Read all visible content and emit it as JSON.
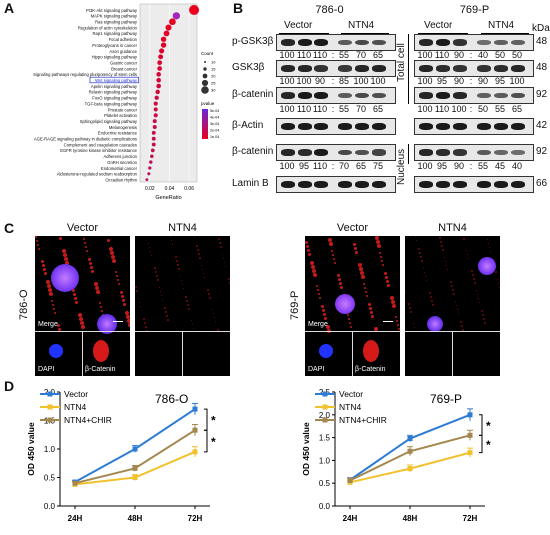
{
  "panels": {
    "a": "A",
    "b": "B",
    "c": "C",
    "d": "D"
  },
  "panel_a": {
    "pathways": [
      "PI3K-Akt signaling pathway",
      "MAPK signaling pathway",
      "Ras signaling pathway",
      "Regulation of actin cytoskeleton",
      "Rap1 signaling pathway",
      "Focal adhesion",
      "Proteoglycans in cancer",
      "Axon guidance",
      "Hippo signaling pathway",
      "Gastric cancer",
      "Breast cancer",
      "Signaling pathways regulating pluripotency of stem cells",
      "Wnt signaling pathway",
      "Apelin signaling pathway",
      "Relaxin signaling pathway",
      "FoxO signaling pathway",
      "TGF-beta signaling pathway",
      "Prostate cancer",
      "Platelet activation",
      "Sphingolipid signaling pathway",
      "Melanogenesis",
      "Endocrine resistance",
      "AGE-RAGE signaling pathway in diabetic complications",
      "Complement and coagulation cascades",
      "EGFR tyrosine kinase inhibitor resistance",
      "Adherens junction",
      "GnRH secretion",
      "Endometrial cancer",
      "Aldosterone-regulated sodium reabsorption",
      "Circadian rhythm"
    ],
    "gene_ratio": [
      0.065,
      0.047,
      0.043,
      0.039,
      0.037,
      0.034,
      0.034,
      0.032,
      0.031,
      0.03,
      0.03,
      0.029,
      0.029,
      0.029,
      0.028,
      0.027,
      0.026,
      0.026,
      0.026,
      0.025,
      0.025,
      0.024,
      0.024,
      0.024,
      0.023,
      0.022,
      0.021,
      0.02,
      0.019,
      0.017
    ],
    "highlight_index": 12,
    "xlabel": "GeneRatio",
    "xticks": [
      "0.02",
      "0.04",
      "0.06"
    ],
    "xlim": [
      0.01,
      0.068
    ],
    "legend_count_title": "Count",
    "legend_count": [
      "10",
      "15",
      "20",
      "25",
      "30"
    ],
    "legend_p_title": "pvalue",
    "legend_p_ticks": [
      "5e-04",
      "4e-04",
      "3e-04",
      "2e-04",
      "1e-04"
    ],
    "colors": {
      "high": "#e8001c",
      "low": "#6a28d8",
      "highlight": "#2233cc"
    }
  },
  "panel_b": {
    "lines": [
      {
        "name": "786-0",
        "conditions": [
          "Vector",
          "NTN4"
        ]
      },
      {
        "name": "769-P",
        "conditions": [
          "Vector",
          "NTN4"
        ]
      }
    ],
    "kda_label": "kDa",
    "rows": [
      {
        "label": "p-GSK3β",
        "kda": "48",
        "left": [
          "100",
          "110",
          "110",
          ":",
          "55",
          "70",
          "65"
        ],
        "right": [
          "100",
          "110",
          "90",
          ":",
          "40",
          "50",
          "50"
        ]
      },
      {
        "label": "GSK3β",
        "kda": "48",
        "left": [
          "100",
          "100",
          "90",
          ":",
          "85",
          "100",
          "100"
        ],
        "right": [
          "100",
          "95",
          "90",
          ":",
          "90",
          "95",
          "100"
        ]
      },
      {
        "label": "β-catenin",
        "kda": "92",
        "left": [
          "100",
          "110",
          "110",
          ":",
          "55",
          "70",
          "65"
        ],
        "right": [
          "100",
          "110",
          "100",
          ":",
          "50",
          "55",
          "65"
        ]
      },
      {
        "label": "β-Actin",
        "kda": "42",
        "left": null,
        "right": null
      },
      {
        "label": "β-catenin",
        "kda": "92",
        "left": [
          "100",
          "95",
          "110",
          ":",
          "70",
          "65",
          "75"
        ],
        "right": [
          "100",
          "95",
          "90",
          ":",
          "55",
          "45",
          "40"
        ]
      },
      {
        "label": "Lamin B",
        "kda": "66",
        "left": null,
        "right": null
      }
    ],
    "fractions": [
      "Total cell",
      "Nucleus"
    ]
  },
  "panel_c": {
    "lines": [
      "786-O",
      "769-P"
    ],
    "conditions": [
      "Vector",
      "NTN4"
    ],
    "merge_label": "Merge",
    "dapi_label": "DAPI",
    "catenin_label": "β-Catenin"
  },
  "chart_data": [
    {
      "type": "line",
      "title": "786-O",
      "xlabel": "",
      "ylabel": "OD 450 value",
      "categories": [
        "24H",
        "48H",
        "72H"
      ],
      "ylim": [
        0,
        2.0
      ],
      "yticks": [
        "0.0",
        "0.5",
        "1.0",
        "1.5",
        "2.0"
      ],
      "series": [
        {
          "name": "Vector",
          "color": "#2d7bd6",
          "values": [
            0.42,
            1.0,
            1.7
          ],
          "err": [
            0.03,
            0.06,
            0.1
          ]
        },
        {
          "name": "NTN4",
          "color": "#f2c12e",
          "values": [
            0.38,
            0.5,
            0.95
          ],
          "err": [
            0.03,
            0.05,
            0.09
          ]
        },
        {
          "name": "NTN4+CHIR",
          "color": "#a3874e",
          "values": [
            0.4,
            0.66,
            1.33
          ],
          "err": [
            0.03,
            0.05,
            0.1
          ]
        }
      ],
      "significance": [
        "*",
        "*"
      ]
    },
    {
      "type": "line",
      "title": "769-P",
      "xlabel": "",
      "ylabel": "OD 450 value",
      "categories": [
        "24H",
        "48H",
        "72H"
      ],
      "ylim": [
        0,
        2.5
      ],
      "yticks": [
        "0.0",
        "0.5",
        "1.0",
        "1.5",
        "2.0",
        "2.5"
      ],
      "series": [
        {
          "name": "Vector",
          "color": "#2d7bd6",
          "values": [
            0.57,
            1.48,
            2.0
          ],
          "err": [
            0.05,
            0.07,
            0.13
          ]
        },
        {
          "name": "NTN4",
          "color": "#f2c12e",
          "values": [
            0.52,
            0.82,
            1.17
          ],
          "err": [
            0.04,
            0.08,
            0.1
          ]
        },
        {
          "name": "NTN4+CHIR",
          "color": "#a3874e",
          "values": [
            0.56,
            1.2,
            1.55
          ],
          "err": [
            0.05,
            0.1,
            0.11
          ]
        }
      ],
      "significance": [
        "*",
        "*"
      ]
    }
  ]
}
